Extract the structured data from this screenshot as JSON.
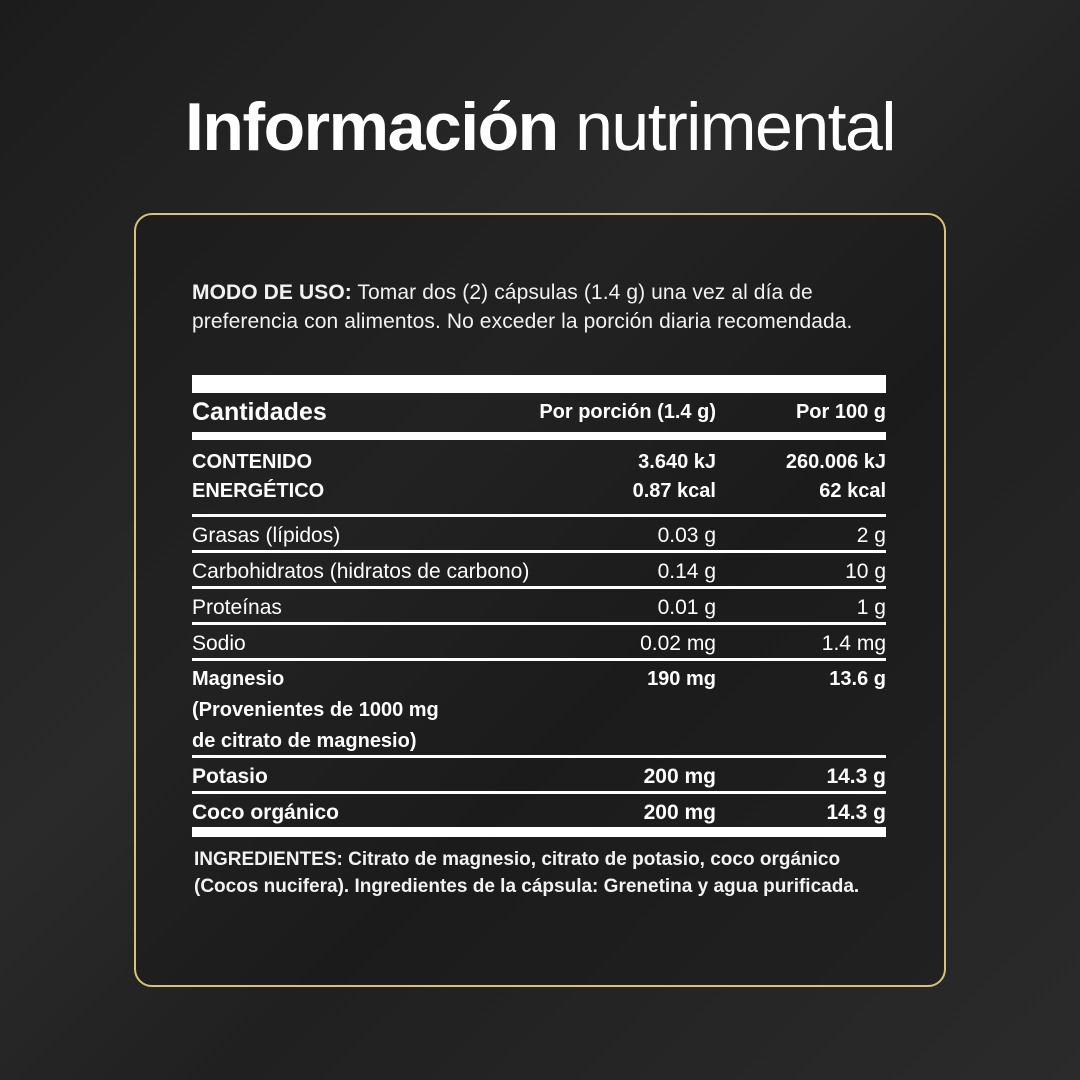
{
  "title": {
    "bold": "Información",
    "light": "nutrimental"
  },
  "usage": {
    "label": "MODO DE USO:",
    "text": " Tomar dos (2) cápsulas (1.4 g) una vez al día de preferencia con alimentos. No exceder la porción diaria recomendada."
  },
  "table": {
    "headers": [
      "Cantidades",
      "Por porción (1.4 g)",
      "Por 100 g"
    ],
    "energy": {
      "label_line1": "CONTENIDO",
      "label_line2": "ENERGÉTICO",
      "per_serving_kj": "3.640 kJ",
      "per_serving_kcal": "0.87 kcal",
      "per_100_kj": "260.006 kJ",
      "per_100_kcal": "62 kcal"
    },
    "rows": [
      {
        "name": "Grasas (lípidos)",
        "per_serving": "0.03 g",
        "per_100": "2 g"
      },
      {
        "name": "Carbohidratos (hidratos de carbono)",
        "per_serving": "0.14 g",
        "per_100": "10 g"
      },
      {
        "name": "Proteínas",
        "per_serving": "0.01 g",
        "per_100": "1 g"
      },
      {
        "name": "Sodio",
        "per_serving": "0.02 mg",
        "per_100": "1.4 mg"
      }
    ],
    "magnesio": {
      "line1": "Magnesio",
      "line2": "(Provenientes de 1000 mg",
      "line3": "de citrato de magnesio)",
      "per_serving": "190 mg",
      "per_100": "13.6 g"
    },
    "bold_rows": [
      {
        "name": "Potasio",
        "per_serving": "200 mg",
        "per_100": "14.3 g"
      },
      {
        "name": "Coco orgánico",
        "per_serving": "200 mg",
        "per_100": "14.3 g"
      }
    ]
  },
  "ingredients": {
    "text": "INGREDIENTES: Citrato de magnesio, citrato de potasio, coco orgánico (Cocos nucifera). Ingredientes de la cápsula: Grenetina y agua purificada."
  },
  "colors": {
    "border": "#d9c277",
    "background": "#222222"
  }
}
